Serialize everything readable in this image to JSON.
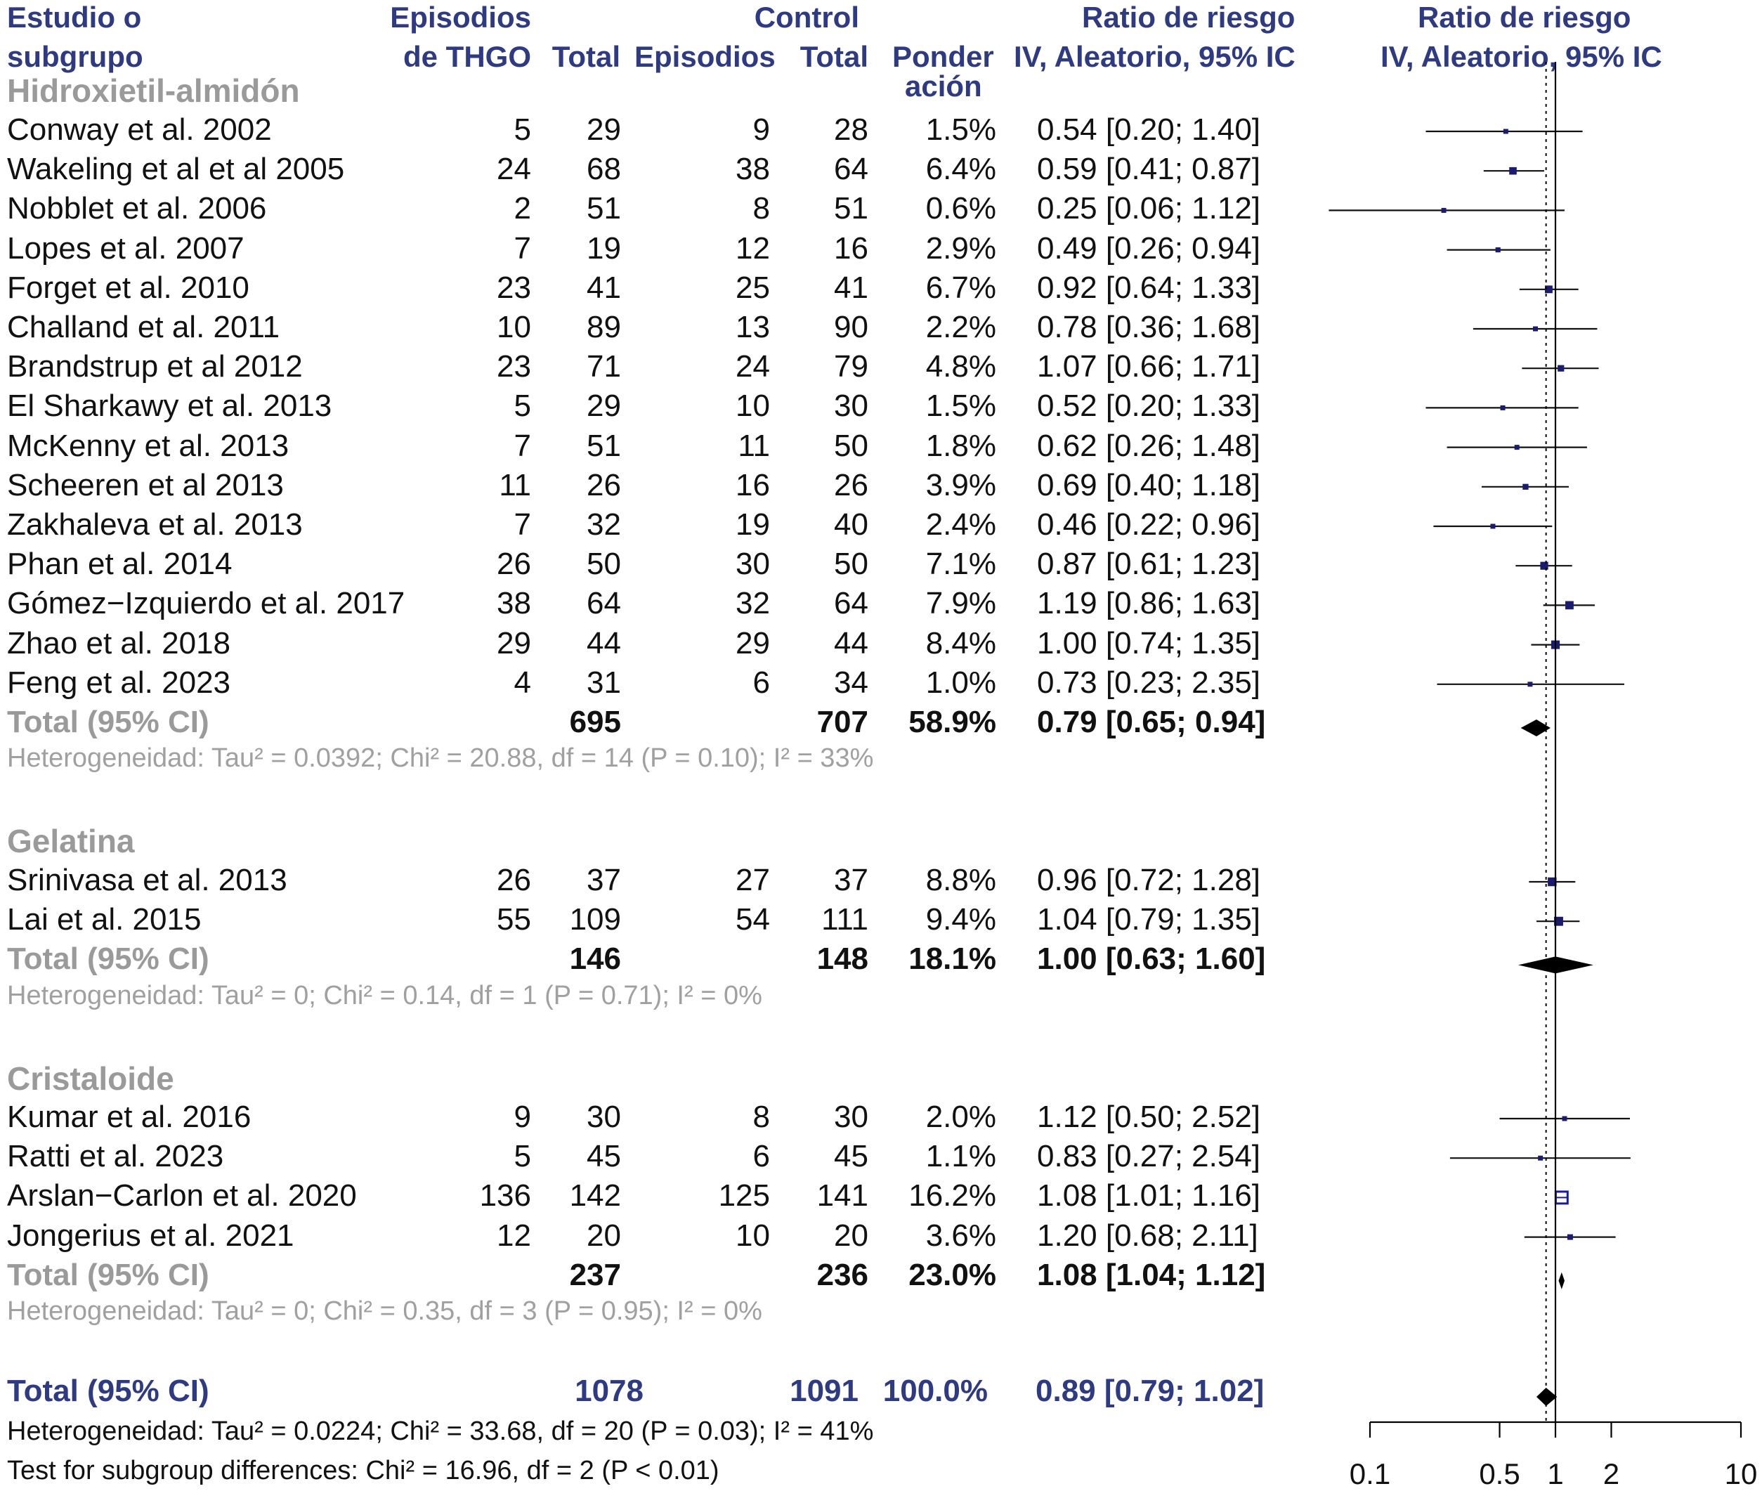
{
  "headers": {
    "study_1": "Estudio o",
    "study_2": "subgrupo",
    "events_1": "Episodios",
    "events_2": "de THGO",
    "total": "Total",
    "control": "Control",
    "control_events": "Episodios",
    "control_total": "Total",
    "weight_1": "Ponder",
    "weight_2": "ación",
    "rr_1": "Ratio de riesgo",
    "rr_2": "IV, Aleatorio, 95% IC",
    "plot_1": "Ratio de riesgo",
    "plot_2": "IV, Aleatorio, 95% IC"
  },
  "chart_data": {
    "type": "forest",
    "x_scale": "log",
    "xlim": [
      0.1,
      10
    ],
    "x_ticks": [
      "0.1",
      "0.5",
      "1",
      "2",
      "10"
    ],
    "reference_line": 1,
    "subgroups": [
      {
        "name": "Hidroxietil-almidón",
        "studies": [
          {
            "study": "Conway et al. 2002",
            "ev_e": "5",
            "n_e": "29",
            "ev_c": "9",
            "n_c": "28",
            "weight": "1.5%",
            "ci_text": "0.54 [0.20; 1.40]",
            "rr": 0.54,
            "lo": 0.2,
            "hi": 1.4
          },
          {
            "study": "Wakeling et al et al 2005",
            "ev_e": "24",
            "n_e": "68",
            "ev_c": "38",
            "n_c": "64",
            "weight": "6.4%",
            "ci_text": "0.59 [0.41; 0.87]",
            "rr": 0.59,
            "lo": 0.41,
            "hi": 0.87
          },
          {
            "study": "Nobblet et al. 2006",
            "ev_e": "2",
            "n_e": "51",
            "ev_c": "8",
            "n_c": "51",
            "weight": "0.6%",
            "ci_text": "0.25 [0.06; 1.12]",
            "rr": 0.25,
            "lo": 0.06,
            "hi": 1.12
          },
          {
            "study": "Lopes et al. 2007",
            "ev_e": "7",
            "n_e": "19",
            "ev_c": "12",
            "n_c": "16",
            "weight": "2.9%",
            "ci_text": "0.49 [0.26; 0.94]",
            "rr": 0.49,
            "lo": 0.26,
            "hi": 0.94
          },
          {
            "study": "Forget et al. 2010",
            "ev_e": "23",
            "n_e": "41",
            "ev_c": "25",
            "n_c": "41",
            "weight": "6.7%",
            "ci_text": "0.92 [0.64; 1.33]",
            "rr": 0.92,
            "lo": 0.64,
            "hi": 1.33
          },
          {
            "study": "Challand et al. 2011",
            "ev_e": "10",
            "n_e": "89",
            "ev_c": "13",
            "n_c": "90",
            "weight": "2.2%",
            "ci_text": "0.78 [0.36; 1.68]",
            "rr": 0.78,
            "lo": 0.36,
            "hi": 1.68
          },
          {
            "study": "Brandstrup et al 2012",
            "ev_e": "23",
            "n_e": "71",
            "ev_c": "24",
            "n_c": "79",
            "weight": "4.8%",
            "ci_text": "1.07 [0.66; 1.71]",
            "rr": 1.07,
            "lo": 0.66,
            "hi": 1.71
          },
          {
            "study": "El Sharkawy et al. 2013",
            "ev_e": "5",
            "n_e": "29",
            "ev_c": "10",
            "n_c": "30",
            "weight": "1.5%",
            "ci_text": "0.52 [0.20; 1.33]",
            "rr": 0.52,
            "lo": 0.2,
            "hi": 1.33
          },
          {
            "study": "McKenny et al. 2013",
            "ev_e": "7",
            "n_e": "51",
            "ev_c": "11",
            "n_c": "50",
            "weight": "1.8%",
            "ci_text": "0.62 [0.26; 1.48]",
            "rr": 0.62,
            "lo": 0.26,
            "hi": 1.48
          },
          {
            "study": "Scheeren et al 2013",
            "ev_e": "11",
            "n_e": "26",
            "ev_c": "16",
            "n_c": "26",
            "weight": "3.9%",
            "ci_text": "0.69 [0.40; 1.18]",
            "rr": 0.69,
            "lo": 0.4,
            "hi": 1.18
          },
          {
            "study": "Zakhaleva et al. 2013",
            "ev_e": "7",
            "n_e": "32",
            "ev_c": "19",
            "n_c": "40",
            "weight": "2.4%",
            "ci_text": "0.46 [0.22; 0.96]",
            "rr": 0.46,
            "lo": 0.22,
            "hi": 0.96
          },
          {
            "study": "Phan et al. 2014",
            "ev_e": "26",
            "n_e": "50",
            "ev_c": "30",
            "n_c": "50",
            "weight": "7.1%",
            "ci_text": "0.87 [0.61; 1.23]",
            "rr": 0.87,
            "lo": 0.61,
            "hi": 1.23
          },
          {
            "study": "Gómez−Izquierdo et al. 2017",
            "ev_e": "38",
            "n_e": "64",
            "ev_c": "32",
            "n_c": "64",
            "weight": "7.9%",
            "ci_text": "1.19 [0.86; 1.63]",
            "rr": 1.19,
            "lo": 0.86,
            "hi": 1.63
          },
          {
            "study": "Zhao et al. 2018",
            "ev_e": "29",
            "n_e": "44",
            "ev_c": "29",
            "n_c": "44",
            "weight": "8.4%",
            "ci_text": "1.00 [0.74; 1.35]",
            "rr": 1.0,
            "lo": 0.74,
            "hi": 1.35
          },
          {
            "study": "Feng et al. 2023",
            "ev_e": "4",
            "n_e": "31",
            "ev_c": "6",
            "n_c": "34",
            "weight": "1.0%",
            "ci_text": "0.73 [0.23; 2.35]",
            "rr": 0.73,
            "lo": 0.23,
            "hi": 2.35
          }
        ],
        "total": {
          "label": "Total (95% CI)",
          "n_e": "695",
          "n_c": "707",
          "weight": "58.9%",
          "ci_text": "0.79 [0.65; 0.94]",
          "rr": 0.79,
          "lo": 0.65,
          "hi": 0.94
        },
        "heterogeneity": "Heterogeneidad: Tau² = 0.0392; Chi² = 20.88, df = 14 (P = 0.10); I² = 33%"
      },
      {
        "name": "Gelatina",
        "studies": [
          {
            "study": "Srinivasa et al. 2013",
            "ev_e": "26",
            "n_e": "37",
            "ev_c": "27",
            "n_c": "37",
            "weight": "8.8%",
            "ci_text": "0.96 [0.72; 1.28]",
            "rr": 0.96,
            "lo": 0.72,
            "hi": 1.28
          },
          {
            "study": "Lai et al. 2015",
            "ev_e": "55",
            "n_e": "109",
            "ev_c": "54",
            "n_c": "111",
            "weight": "9.4%",
            "ci_text": "1.04 [0.79; 1.35]",
            "rr": 1.04,
            "lo": 0.79,
            "hi": 1.35
          }
        ],
        "total": {
          "label": "Total (95% CI)",
          "n_e": "146",
          "n_c": "148",
          "weight": "18.1%",
          "ci_text": "1.00 [0.63; 1.60]",
          "rr": 1.0,
          "lo": 0.63,
          "hi": 1.6
        },
        "heterogeneity": "Heterogeneidad: Tau² = 0; Chi² = 0.14, df = 1 (P = 0.71); I² = 0%"
      },
      {
        "name": "Cristaloide",
        "studies": [
          {
            "study": "Kumar et al. 2016",
            "ev_e": "9",
            "n_e": "30",
            "ev_c": "8",
            "n_c": "30",
            "weight": "2.0%",
            "ci_text": "1.12 [0.50; 2.52]",
            "rr": 1.12,
            "lo": 0.5,
            "hi": 2.52
          },
          {
            "study": "Ratti et al. 2023",
            "ev_e": "5",
            "n_e": "45",
            "ev_c": "6",
            "n_c": "45",
            "weight": "1.1%",
            "ci_text": "0.83 [0.27; 2.54]",
            "rr": 0.83,
            "lo": 0.27,
            "hi": 2.54
          },
          {
            "study": "Arslan−Carlon et al. 2020",
            "ev_e": "136",
            "n_e": "142",
            "ev_c": "125",
            "n_c": "141",
            "weight": "16.2%",
            "ci_text": "1.08 [1.01; 1.16]",
            "rr": 1.08,
            "lo": 1.01,
            "hi": 1.16
          },
          {
            "study": "Jongerius et al. 2021",
            "ev_e": "12",
            "n_e": "20",
            "ev_c": "10",
            "n_c": "20",
            "weight": "3.6%",
            "ci_text": "1.20 [0.68; 2.11]",
            "rr": 1.2,
            "lo": 0.68,
            "hi": 2.11
          }
        ],
        "total": {
          "label": "Total (95% CI)",
          "n_e": "237",
          "n_c": "236",
          "weight": "23.0%",
          "ci_text": "1.08 [1.04; 1.12]",
          "rr": 1.08,
          "lo": 1.04,
          "hi": 1.12
        },
        "heterogeneity": "Heterogeneidad: Tau² = 0; Chi² = 0.35, df = 3 (P = 0.95); I² = 0%"
      }
    ],
    "overall": {
      "label": "Total (95% CI)",
      "n_e": "1078",
      "n_c": "1091",
      "weight": "100.0%",
      "ci_text": "0.89 [0.79; 1.02]",
      "rr": 0.89,
      "lo": 0.79,
      "hi": 1.02
    },
    "overall_heterogeneity": "Heterogeneidad: Tau² = 0.0224; Chi² = 33.68, df = 20 (P = 0.03); I² = 41%",
    "subgroup_test": "Test for subgroup differences: Chi² = 16.96, df = 2 (P < 0.01)"
  }
}
